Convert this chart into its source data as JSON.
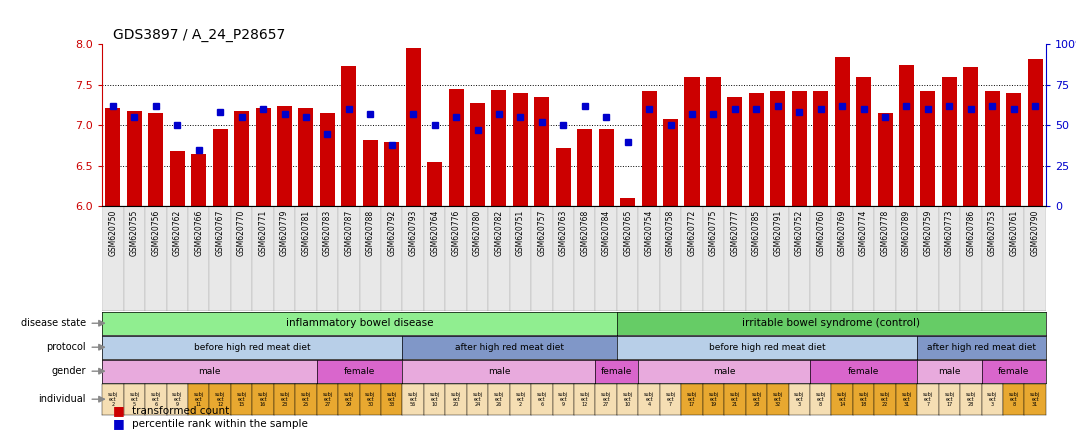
{
  "title": "GDS3897 / A_24_P28657",
  "sample_ids": [
    "GSM620750",
    "GSM620755",
    "GSM620756",
    "GSM620762",
    "GSM620766",
    "GSM620767",
    "GSM620770",
    "GSM620771",
    "GSM620779",
    "GSM620781",
    "GSM620783",
    "GSM620787",
    "GSM620788",
    "GSM620792",
    "GSM620793",
    "GSM620764",
    "GSM620776",
    "GSM620780",
    "GSM620782",
    "GSM620751",
    "GSM620757",
    "GSM620763",
    "GSM620768",
    "GSM620784",
    "GSM620765",
    "GSM620754",
    "GSM620758",
    "GSM620772",
    "GSM620775",
    "GSM620777",
    "GSM620785",
    "GSM620791",
    "GSM620752",
    "GSM620760",
    "GSM620769",
    "GSM620774",
    "GSM620778",
    "GSM620789",
    "GSM620759",
    "GSM620773",
    "GSM620786",
    "GSM620753",
    "GSM620761",
    "GSM620790"
  ],
  "bar_values": [
    7.22,
    7.18,
    7.15,
    6.68,
    6.65,
    6.96,
    7.18,
    7.22,
    7.24,
    7.22,
    7.15,
    7.73,
    6.82,
    6.8,
    7.95,
    6.55,
    7.45,
    7.28,
    7.44,
    7.4,
    7.35,
    6.72,
    6.95,
    6.95,
    6.1,
    7.43,
    7.08,
    7.6,
    7.6,
    7.35,
    7.4,
    7.43,
    7.43,
    7.42,
    7.85,
    7.6,
    7.15,
    7.75,
    7.42,
    7.6,
    7.72,
    7.43,
    7.4,
    7.82
  ],
  "percentile_values": [
    62,
    55,
    62,
    50,
    35,
    58,
    55,
    60,
    57,
    55,
    45,
    60,
    57,
    38,
    57,
    50,
    55,
    47,
    57,
    55,
    52,
    50,
    62,
    55,
    40,
    60,
    50,
    57,
    57,
    60,
    60,
    62,
    58,
    60,
    62,
    60,
    55,
    62,
    60,
    62,
    60,
    62,
    60,
    62
  ],
  "ymin": 6.0,
  "ymax": 8.0,
  "yticks": [
    6.0,
    6.5,
    7.0,
    7.5,
    8.0
  ],
  "bar_color": "#cc0000",
  "dot_color": "#0000cc",
  "left_axis_color": "#cc0000",
  "right_axis_color": "#0000cc",
  "disease_state_segments": [
    {
      "label": "inflammatory bowel disease",
      "start": 0,
      "end": 24,
      "color": "#90ee90"
    },
    {
      "label": "irritable bowel syndrome (control)",
      "start": 24,
      "end": 44,
      "color": "#66cc66"
    }
  ],
  "protocol_segments": [
    {
      "label": "before high red meat diet",
      "start": 0,
      "end": 14,
      "color": "#b8cfe8"
    },
    {
      "label": "after high red meat diet",
      "start": 14,
      "end": 24,
      "color": "#8097c8"
    },
    {
      "label": "before high red meat diet",
      "start": 24,
      "end": 38,
      "color": "#b8cfe8"
    },
    {
      "label": "after high red meat diet",
      "start": 38,
      "end": 44,
      "color": "#8097c8"
    }
  ],
  "gender_segments": [
    {
      "label": "male",
      "start": 0,
      "end": 10,
      "color": "#e8aadd"
    },
    {
      "label": "female",
      "start": 10,
      "end": 14,
      "color": "#d966cc"
    },
    {
      "label": "male",
      "start": 14,
      "end": 23,
      "color": "#e8aadd"
    },
    {
      "label": "female",
      "start": 23,
      "end": 25,
      "color": "#d966cc"
    },
    {
      "label": "male",
      "start": 25,
      "end": 33,
      "color": "#e8aadd"
    },
    {
      "label": "female",
      "start": 33,
      "end": 38,
      "color": "#d966cc"
    },
    {
      "label": "male",
      "start": 38,
      "end": 41,
      "color": "#e8aadd"
    },
    {
      "label": "female",
      "start": 41,
      "end": 44,
      "color": "#d966cc"
    }
  ],
  "individual_labels": [
    "subj\nect\n2",
    "subj\nect\n5",
    "subj\nect\n6",
    "subj\nect\n9",
    "subj\nect\n11",
    "subj\nect\n12",
    "subj\nect\n15",
    "subj\nect\n16",
    "subj\nect\n23",
    "subj\nect\n25",
    "subj\nect\n27",
    "subj\nect\n29",
    "subj\nect\n30",
    "subj\nect\n33",
    "subj\nect\n56",
    "subj\nect\n10",
    "subj\nect\n20",
    "subj\nect\n24",
    "subj\nect\n26",
    "subj\nect\n2",
    "subj\nect\n6",
    "subj\nect\n9",
    "subj\nect\n12",
    "subj\nect\n27",
    "subj\nect\n10",
    "subj\nect\n4",
    "subj\nect\n7",
    "subj\nect\n17",
    "subj\nect\n19",
    "subj\nect\n21",
    "subj\nect\n28",
    "subj\nect\n32",
    "subj\nect\n3",
    "subj\nect\n8",
    "subj\nect\n14",
    "subj\nect\n18",
    "subj\nect\n22",
    "subj\nect\n31",
    "subj\nect\n7",
    "subj\nect\n17",
    "subj\nect\n28",
    "subj\nect\n3",
    "subj\nect\n8",
    "subj\nect\n31"
  ],
  "individual_colors": [
    "#f5deb3",
    "#f5deb3",
    "#f5deb3",
    "#f5deb3",
    "#e8a830",
    "#e8a830",
    "#e8a830",
    "#e8a830",
    "#e8a830",
    "#e8a830",
    "#e8a830",
    "#e8a830",
    "#e8a830",
    "#e8a830",
    "#f5deb3",
    "#f5deb3",
    "#f5deb3",
    "#f5deb3",
    "#f5deb3",
    "#f5deb3",
    "#f5deb3",
    "#f5deb3",
    "#f5deb3",
    "#f5deb3",
    "#f5deb3",
    "#f5deb3",
    "#f5deb3",
    "#e8a830",
    "#e8a830",
    "#e8a830",
    "#e8a830",
    "#e8a830",
    "#f5deb3",
    "#f5deb3",
    "#e8a830",
    "#e8a830",
    "#e8a830",
    "#e8a830",
    "#f5deb3",
    "#f5deb3",
    "#f5deb3",
    "#f5deb3",
    "#e8a830",
    "#e8a830"
  ],
  "legend_transformed": "transformed count",
  "legend_percentile": "percentile rank within the sample"
}
